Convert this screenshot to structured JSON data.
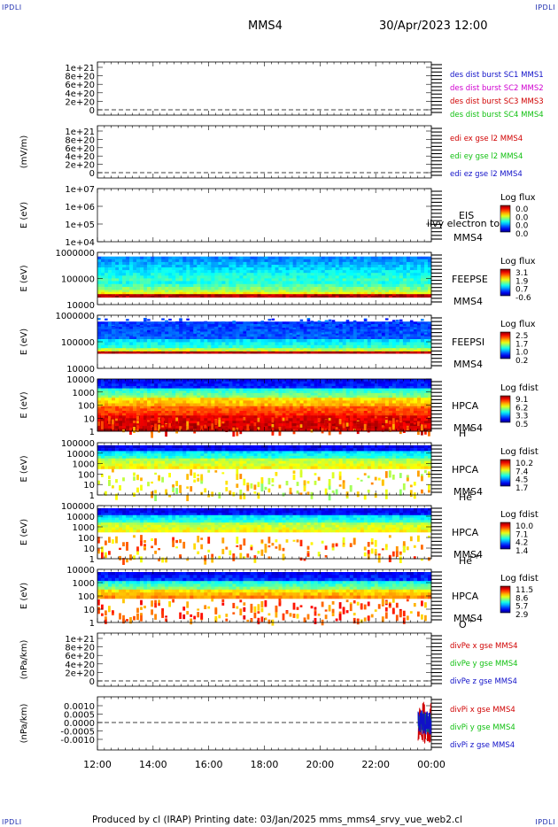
{
  "corners": {
    "tl": "IPDLI",
    "tr": "IPDLI",
    "bl": "IPDLI",
    "br": "IPDLI"
  },
  "header": {
    "title": "MMS4",
    "date": "30/Apr/2023 12:00"
  },
  "footer": {
    "text": "Produced by cl (IRAP)   Printing date: 03/Jan/2025   mms_mms4_srvy_vue_web2.cl"
  },
  "chart_data": [
    {
      "type": "line",
      "title": "",
      "ylabel": "",
      "yticks": [
        "1e+21",
        "8e+20",
        "6e+20",
        "4e+20",
        "2e+20",
        "0"
      ],
      "ylim": [
        0,
        1e+21
      ],
      "series": [
        {
          "name": "des dist burst SC1 MMS1",
          "color": "#1010c8",
          "values": []
        },
        {
          "name": "des dist burst SC2 MMS2",
          "color": "#d000d0",
          "values": []
        },
        {
          "name": "des dist burst SC3 MMS3",
          "color": "#d00000",
          "values": []
        },
        {
          "name": "des dist burst SC4 MMS4",
          "color": "#10c010",
          "values": []
        }
      ]
    },
    {
      "type": "line",
      "ylabel": "(mV/m)",
      "yticks": [
        "1e+21",
        "8e+20",
        "6e+20",
        "4e+20",
        "2e+20",
        "0"
      ],
      "ylim": [
        0,
        1e+21
      ],
      "series": [
        {
          "name": "edi ex gse l2 MMS4",
          "color": "#d00000",
          "values": []
        },
        {
          "name": "edi ey gse l2 MMS4",
          "color": "#10c010",
          "values": []
        },
        {
          "name": "edi ez gse l2 MMS4",
          "color": "#1010c8",
          "values": []
        }
      ]
    },
    {
      "type": "heatmap",
      "ylabel": "E (eV)",
      "yticks": [
        "1e+07",
        "1e+06",
        "1e+05",
        "1e+04"
      ],
      "ylim": [
        10000.0,
        10000000.0
      ],
      "yscale": "log",
      "instrument": [
        "EIS",
        "MMS4"
      ],
      "overlay": "ilvy electron to",
      "colorbar": {
        "title": "Log flux",
        "ticks": [
          "0.0",
          "0.0",
          "0.0",
          "0.0"
        ]
      }
    },
    {
      "type": "heatmap",
      "ylabel": "E (eV)",
      "yticks": [
        "1000000",
        "100000",
        "10000"
      ],
      "ylim": [
        10000.0,
        1000000.0
      ],
      "yscale": "log",
      "instrument": [
        "FEEPSE",
        "MMS4"
      ],
      "colorbar": {
        "title": "Log flux",
        "ticks": [
          "3.1",
          "1.9",
          "0.7",
          "-0.6"
        ]
      }
    },
    {
      "type": "heatmap",
      "ylabel": "E (eV)",
      "yticks": [
        "1000000",
        "100000",
        "10000"
      ],
      "ylim": [
        10000.0,
        1000000.0
      ],
      "yscale": "log",
      "instrument": [
        "FEEPSI",
        "MMS4"
      ],
      "colorbar": {
        "title": "Log flux",
        "ticks": [
          "2.5",
          "1.7",
          "1.0",
          "0.2"
        ]
      }
    },
    {
      "type": "heatmap",
      "ylabel": "E (eV)",
      "yticks": [
        "10000",
        "1000",
        "100",
        "10",
        "1"
      ],
      "ylim": [
        1,
        40000.0
      ],
      "yscale": "log",
      "instrument": [
        "HPCA",
        "MMS4"
      ],
      "species": "H",
      "charge": "+",
      "colorbar": {
        "title": "Log fdist",
        "ticks": [
          "9.1",
          "6.2",
          "3.3",
          "0.5"
        ]
      }
    },
    {
      "type": "heatmap",
      "ylabel": "E (eV)",
      "yticks": [
        "100000",
        "10000",
        "1000",
        "100",
        "10",
        "1"
      ],
      "ylim": [
        1,
        100000.0
      ],
      "yscale": "log",
      "instrument": [
        "HPCA",
        "MMS4"
      ],
      "species": "He",
      "charge": "+",
      "colorbar": {
        "title": "Log fdist",
        "ticks": [
          "10.2",
          "7.4",
          "4.5",
          "1.7"
        ]
      }
    },
    {
      "type": "heatmap",
      "ylabel": "E (eV)",
      "yticks": [
        "100000",
        "10000",
        "1000",
        "100",
        "10",
        "1"
      ],
      "ylim": [
        1,
        100000.0
      ],
      "yscale": "log",
      "instrument": [
        "HPCA",
        "MMS4"
      ],
      "species": "He",
      "charge": "++",
      "colorbar": {
        "title": "Log fdist",
        "ticks": [
          "10.0",
          "7.1",
          "4.2",
          "1.4"
        ]
      }
    },
    {
      "type": "heatmap",
      "ylabel": "E (eV)",
      "yticks": [
        "10000",
        "1000",
        "100",
        "10",
        "1"
      ],
      "ylim": [
        1,
        40000.0
      ],
      "yscale": "log",
      "instrument": [
        "HPCA",
        "MMS4"
      ],
      "species": "O",
      "charge": "+",
      "colorbar": {
        "title": "Log fdist",
        "ticks": [
          "11.5",
          "8.6",
          "5.7",
          "2.9"
        ]
      }
    },
    {
      "type": "line",
      "ylabel": "(nPa/km)",
      "yticks": [
        "1e+21",
        "8e+20",
        "6e+20",
        "4e+20",
        "2e+20",
        "0"
      ],
      "ylim": [
        0,
        1e+21
      ],
      "series": [
        {
          "name": "divPe x gse MMS4",
          "color": "#d00000",
          "values": []
        },
        {
          "name": "divPe y gse MMS4",
          "color": "#10c010",
          "values": []
        },
        {
          "name": "divPe z gse MMS4",
          "color": "#1010c8",
          "values": []
        }
      ]
    },
    {
      "type": "line",
      "ylabel": "(nPa/km)",
      "yticks": [
        "0.0010",
        "0.0005",
        "0.0000",
        "-0.0005",
        "-0.0010"
      ],
      "ylim": [
        -0.0013,
        0.0013
      ],
      "series": [
        {
          "name": "divPi x gse MMS4",
          "color": "#d00000",
          "values": []
        },
        {
          "name": "divPi y gse MMS4",
          "color": "#10c010",
          "values": []
        },
        {
          "name": "divPi z gse MMS4",
          "color": "#1010c8",
          "values": []
        }
      ]
    }
  ],
  "xaxis": {
    "ticks": [
      "12:00",
      "14:00",
      "16:00",
      "18:00",
      "20:00",
      "22:00",
      "00:00"
    ],
    "range": [
      "12:00",
      "00:00"
    ]
  }
}
